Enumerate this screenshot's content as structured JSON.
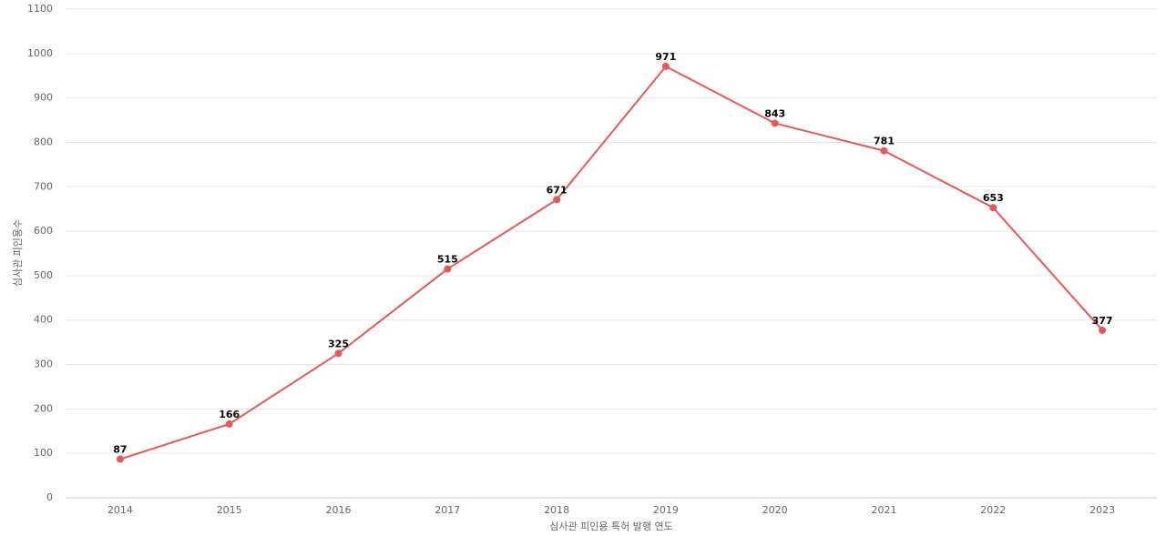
{
  "chart_data": {
    "type": "line",
    "x_label": "심사관 피인용 특허 발행 연도",
    "y_label": "심사관 피인용수",
    "categories": [
      "2014",
      "2015",
      "2016",
      "2017",
      "2018",
      "2019",
      "2020",
      "2021",
      "2022",
      "2023"
    ],
    "values": [
      87,
      166,
      325,
      515,
      671,
      971,
      843,
      781,
      653,
      377
    ],
    "color": "#e85757",
    "ylim": [
      0,
      1100
    ],
    "yticks": [
      0,
      100,
      200,
      300,
      400,
      500,
      600,
      700,
      800,
      900,
      1000,
      1100
    ],
    "grid": true
  }
}
